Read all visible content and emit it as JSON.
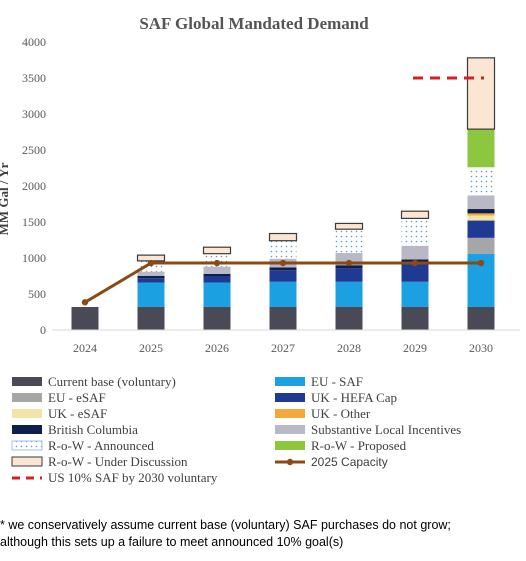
{
  "chart_data": {
    "type": "bar",
    "stacked": true,
    "title": "SAF Global Mandated Demand",
    "xlabel": "",
    "ylabel": "MM Gal / Yr",
    "ylim": [
      0,
      4000
    ],
    "yticks": [
      0,
      500,
      1000,
      1500,
      2000,
      2500,
      3000,
      3500,
      4000
    ],
    "categories": [
      "2024",
      "2025",
      "2026",
      "2027",
      "2028",
      "2029",
      "2030"
    ],
    "series": [
      {
        "name": "Current base (voluntary)",
        "color": "#4a4a57",
        "pattern": "solid",
        "values": [
          320,
          320,
          320,
          320,
          320,
          320,
          320
        ]
      },
      {
        "name": "EU - SAF",
        "color": "#1ba1e2",
        "pattern": "solid",
        "values": [
          0,
          340,
          340,
          350,
          350,
          350,
          740
        ]
      },
      {
        "name": "EU - eSAF",
        "color": "#a6a6a6",
        "pattern": "solid",
        "values": [
          0,
          0,
          0,
          0,
          0,
          0,
          220
        ]
      },
      {
        "name": "UK - HEFA Cap",
        "color": "#1f3a93",
        "pattern": "solid",
        "values": [
          0,
          60,
          90,
          160,
          190,
          260,
          240
        ]
      },
      {
        "name": "UK - eSAF",
        "color": "#f2e3a6",
        "pattern": "solid",
        "values": [
          0,
          0,
          0,
          0,
          0,
          0,
          70
        ]
      },
      {
        "name": "UK - Other",
        "color": "#f4a73a",
        "pattern": "solid",
        "values": [
          0,
          0,
          0,
          0,
          0,
          0,
          30
        ]
      },
      {
        "name": "British Columbia",
        "color": "#0d1f4a",
        "pattern": "solid",
        "values": [
          0,
          30,
          30,
          40,
          40,
          50,
          60
        ]
      },
      {
        "name": "Substantive Local Incentives",
        "color": "#b8b8c6",
        "pattern": "solid",
        "values": [
          0,
          60,
          100,
          120,
          170,
          190,
          190
        ]
      },
      {
        "name": "R-o-W - Announced",
        "color": "#9dc3e6",
        "pattern": "dotted",
        "values": [
          0,
          150,
          180,
          250,
          330,
          380,
          390
        ]
      },
      {
        "name": "R-o-W - Proposed",
        "color": "#8dc63f",
        "pattern": "solid",
        "values": [
          0,
          0,
          0,
          0,
          0,
          0,
          530
        ]
      },
      {
        "name": "R-o-W - Under Discussion",
        "color": "#fbe5d3",
        "pattern": "solid",
        "values": [
          0,
          80,
          90,
          100,
          80,
          100,
          990
        ]
      }
    ],
    "lines": [
      {
        "name": "2025 Capacity",
        "color": "#8b4a13",
        "style": "solid-marker",
        "x": [
          "2024",
          "2025",
          "2026",
          "2027",
          "2028",
          "2029",
          "2030"
        ],
        "values": [
          385,
          930,
          930,
          930,
          930,
          930,
          930
        ]
      },
      {
        "name": "US 10% SAF by 2030 voluntary",
        "color": "#d62020",
        "style": "dashed",
        "x": [
          "2030"
        ],
        "values": [
          3500
        ]
      }
    ],
    "legend_placement": "bottom",
    "grid": false
  },
  "footnote": {
    "line1": "* we conservatively assume current base (voluntary) SAF purchases do not grow;",
    "line2": "although this sets up a failure to meet announced 10% goal(s)"
  }
}
